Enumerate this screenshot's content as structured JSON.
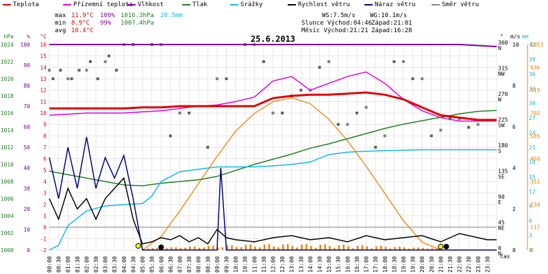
{
  "legend": [
    {
      "label": "Teplota",
      "color": "#e00000"
    },
    {
      "label": "Přízemní teplota",
      "color": "#e000e0"
    },
    {
      "label": "Vlhkost",
      "color": "#8000a0"
    },
    {
      "label": "Tlak",
      "color": "#208020"
    },
    {
      "label": "Srážky",
      "color": "#10b8e8"
    },
    {
      "label": "Rychlost větru",
      "color": "#000000"
    },
    {
      "label": "Náraz větru",
      "color": "#000080"
    },
    {
      "label": "Směr větru",
      "color": "#808080"
    }
  ],
  "stats": {
    "max_label": "max",
    "max_temp": "11.9°C",
    "max_hum": "100%",
    "max_press": "1016.3hPa",
    "max_rain": "20.5mm",
    "min_label": "min",
    "min_temp": "8.9°C",
    "min_hum": "99%",
    "min_press": "1007.4hPa",
    "avg_label": "avg",
    "avg_temp": "10.4°C",
    "ws": "WS:7.5m/s",
    "wg": "WG:10.1m/s",
    "sun": "Slunce Východ:04:46",
    "sun_set": "Západ:21:01",
    "moon": "Měsíc Východ:21:21",
    "moon_set": "Západ:16:28"
  },
  "chart_data": {
    "type": "line",
    "title": "25.6.2013",
    "xlabel": "čas",
    "x_ticks": [
      "00:00",
      "00:30",
      "01:00",
      "01:30",
      "02:00",
      "02:30",
      "03:00",
      "03:30",
      "04:00",
      "04:30",
      "05:00",
      "05:30",
      "06:00",
      "06:30",
      "07:00",
      "07:30",
      "08:00",
      "08:30",
      "09:00",
      "09:30",
      "10:00",
      "10:30",
      "11:00",
      "11:30",
      "12:00",
      "12:30",
      "13:00",
      "13:30",
      "14:00",
      "14:30",
      "15:00",
      "15:30",
      "16:00",
      "16:30",
      "17:00",
      "17:30",
      "18:00",
      "18:30",
      "19:00",
      "19:30",
      "20:00",
      "20:30",
      "21:00",
      "21:30",
      "22:00",
      "22:30",
      "23:00",
      "23:30"
    ],
    "axes": {
      "hPa": {
        "label": "hPa",
        "ticks": [
          "1000",
          "1002",
          "1004",
          "1006",
          "1008",
          "1010",
          "1012",
          "1014",
          "1016",
          "1018",
          "1020",
          "1022",
          "1024"
        ],
        "range": [
          1000,
          1024
        ]
      },
      "percent": {
        "label": "%",
        "ticks": [
          "0",
          "10",
          "20",
          "30",
          "40",
          "50",
          "60",
          "70",
          "80",
          "90",
          "100"
        ],
        "range": [
          0,
          100
        ]
      },
      "temp": {
        "label": "°C",
        "ticks": [
          "-2",
          "-1",
          "0",
          "1",
          "2",
          "3",
          "4",
          "5",
          "6",
          "7",
          "8",
          "9",
          "10",
          "11",
          "12",
          "13",
          "14",
          "15",
          "16"
        ],
        "range": [
          -2,
          16
        ]
      },
      "dir": {
        "label": "°",
        "ticks": [
          "0",
          "45",
          "90",
          "135",
          "180",
          "225",
          "270",
          "315",
          "360"
        ],
        "names": [
          "N",
          "NE",
          "E",
          "SE",
          "S",
          "SW",
          "W",
          "NW",
          "N"
        ],
        "range": [
          0,
          360
        ]
      },
      "wind": {
        "label": "m/s",
        "ticks": [
          "0",
          "2",
          "4",
          "6",
          "8",
          "10"
        ],
        "range": [
          0,
          10
        ]
      },
      "rain": {
        "label": "mm",
        "ticks": [
          "0",
          "3",
          "6",
          "9",
          "12",
          "15",
          "18",
          "21",
          "24",
          "27",
          "30",
          "33",
          "36",
          "39",
          "42"
        ],
        "range": [
          0,
          42
        ]
      },
      "solar": {
        "label": "",
        "ticks": [
          "0",
          "117",
          "234",
          "351",
          "468",
          "585",
          "702",
          "819",
          "936",
          "1053"
        ],
        "range": [
          0,
          1053
        ]
      }
    },
    "series": [
      {
        "name": "Teplota",
        "axis": "temp",
        "color": "#e00000",
        "x": [
          0,
          1,
          2,
          3,
          4,
          5,
          6,
          7,
          8,
          9,
          10,
          11,
          12,
          13,
          14,
          15,
          16,
          17,
          18,
          19,
          20,
          21,
          22,
          23,
          24
        ],
        "values": [
          10.4,
          10.4,
          10.4,
          10.4,
          10.4,
          10.5,
          10.5,
          10.6,
          10.6,
          10.6,
          10.6,
          10.6,
          11.3,
          11.5,
          11.6,
          11.6,
          11.7,
          11.8,
          11.6,
          11.2,
          10.5,
          9.8,
          9.6,
          9.4,
          9.4
        ]
      },
      {
        "name": "Přízemní teplota",
        "axis": "temp",
        "color": "#e000e0",
        "x": [
          0,
          1,
          2,
          3,
          4,
          5,
          6,
          7,
          8,
          9,
          10,
          11,
          12,
          13,
          14,
          15,
          16,
          17,
          18,
          19,
          20,
          21,
          22,
          23,
          24
        ],
        "values": [
          9.8,
          9.9,
          10.0,
          10.0,
          10.0,
          10.1,
          10.2,
          10.4,
          10.6,
          10.7,
          11.0,
          11.4,
          12.8,
          13.2,
          12.0,
          12.6,
          13.2,
          13.6,
          12.6,
          11.2,
          10.2,
          9.6,
          9.3,
          9.3,
          9.3
        ]
      },
      {
        "name": "Vlhkost",
        "axis": "percent",
        "color": "#8000a0",
        "x": [
          0,
          6,
          12,
          18,
          22,
          24
        ],
        "values": [
          100,
          100,
          100,
          100,
          100,
          99
        ]
      },
      {
        "name": "Tlak",
        "axis": "hPa",
        "color": "#208020",
        "x": [
          0,
          1,
          2,
          3,
          4,
          5,
          6,
          7,
          8,
          9,
          10,
          11,
          12,
          13,
          14,
          15,
          16,
          17,
          18,
          19,
          20,
          21,
          22,
          23,
          24
        ],
        "values": [
          1009.2,
          1008.8,
          1008.4,
          1008.0,
          1007.6,
          1007.5,
          1007.8,
          1008.0,
          1008.2,
          1008.6,
          1009.3,
          1010.0,
          1010.6,
          1011.2,
          1011.9,
          1012.4,
          1013.0,
          1013.6,
          1014.2,
          1014.7,
          1015.1,
          1015.5,
          1015.9,
          1016.2,
          1016.3
        ]
      },
      {
        "name": "Srážky",
        "axis": "rain",
        "color": "#10b8e8",
        "x": [
          0,
          0.5,
          1,
          2,
          3,
          4,
          5,
          5.5,
          6,
          6.5,
          7,
          8,
          9,
          10,
          11,
          12,
          13,
          14,
          15,
          16,
          17,
          18,
          19,
          20,
          21,
          22,
          23,
          24
        ],
        "values": [
          0,
          1,
          5,
          8,
          9,
          9.3,
          9.5,
          11,
          14,
          15,
          16,
          16.5,
          17,
          17,
          17,
          17.2,
          17.5,
          18,
          19.5,
          20,
          20.2,
          20.3,
          20.4,
          20.5,
          20.5,
          20.5,
          20.5,
          20.5
        ]
      },
      {
        "name": "Rychlost větru",
        "axis": "wind",
        "color": "#000000",
        "x": [
          0,
          0.5,
          1,
          1.5,
          2,
          2.5,
          3,
          3.5,
          4,
          4.5,
          5,
          5.5,
          6,
          6.5,
          7,
          7.5,
          8,
          8.5,
          9,
          9.5,
          10,
          11,
          12,
          13,
          14,
          15,
          16,
          17,
          18,
          19,
          20,
          21,
          22,
          23,
          23.5,
          24
        ],
        "values": [
          2.5,
          1.5,
          3,
          2,
          2.5,
          1.5,
          2.5,
          3,
          3.5,
          1.5,
          0.3,
          0.4,
          0.6,
          0.5,
          0.7,
          0.4,
          0.6,
          0.3,
          1,
          0.6,
          0.5,
          0.4,
          0.6,
          0.7,
          0.5,
          0.6,
          0.4,
          0.7,
          0.5,
          0.6,
          0.7,
          0.4,
          0.8,
          0.6,
          0.5,
          0.5
        ]
      },
      {
        "name": "Náraz větru",
        "axis": "wind",
        "color": "#000080",
        "x": [
          0,
          0.5,
          1,
          1.5,
          2,
          2.5,
          3,
          3.5,
          4,
          4.5,
          5,
          9,
          9.2,
          9.5,
          24
        ],
        "values": [
          4.5,
          2.5,
          5,
          3,
          5.5,
          3,
          4.5,
          3.5,
          4.6,
          2.5,
          0,
          0,
          4,
          0,
          0
        ]
      },
      {
        "name": "Sluneční záření",
        "axis": "solar",
        "color": "#f08000",
        "x": [
          5,
          6,
          7,
          8,
          9,
          10,
          11,
          12,
          13,
          14,
          15,
          16,
          17,
          18,
          19,
          20,
          21
        ],
        "values": [
          0,
          70,
          200,
          340,
          480,
          610,
          700,
          760,
          780,
          750,
          670,
          560,
          430,
          290,
          150,
          40,
          0
        ]
      },
      {
        "name": "Směr větru",
        "axis": "dir",
        "color": "#808080",
        "x": [
          0,
          1,
          2,
          3,
          4,
          6,
          7,
          9,
          11,
          12,
          13,
          14,
          15,
          16,
          17,
          18,
          19,
          20,
          21,
          22,
          23
        ],
        "values": [
          315,
          300,
          315,
          330,
          360,
          360,
          240,
          300,
          360,
          240,
          270,
          280,
          330,
          220,
          250,
          200,
          330,
          300,
          210,
          230,
          220
        ]
      }
    ]
  }
}
